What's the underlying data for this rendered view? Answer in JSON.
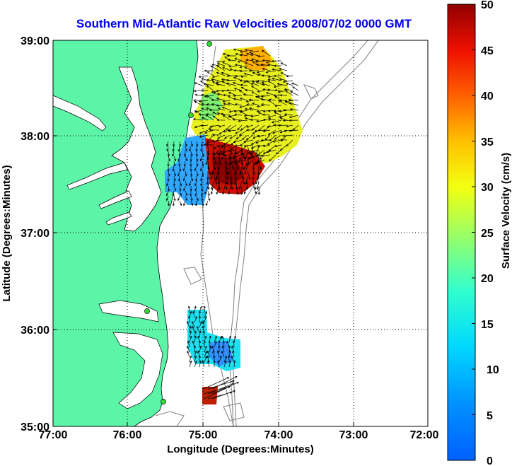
{
  "title": "Southern Mid-Atlantic Raw Velocities 2008/07/02 0000 GMT",
  "xlabel": "Longitude (Degrees:Minutes)",
  "ylabel": "Latitude (Degrees:Minutes)",
  "colorbar_label": "Surface Velocity (cm/s)",
  "x_ticks": [
    "77:00",
    "76:00",
    "75:00",
    "74:00",
    "73:00",
    "72:00"
  ],
  "y_ticks": [
    "39:00",
    "38:00",
    "37:00",
    "36:00",
    "35:00"
  ],
  "cb_ticks": [
    "50",
    "45",
    "40",
    "35",
    "30",
    "25",
    "20",
    "15",
    "10",
    "5",
    "0"
  ],
  "colors": {
    "land": "#5cf5a8",
    "title": "#0000ee",
    "contour": "#8a8a8a",
    "station": "#33dd33"
  }
}
